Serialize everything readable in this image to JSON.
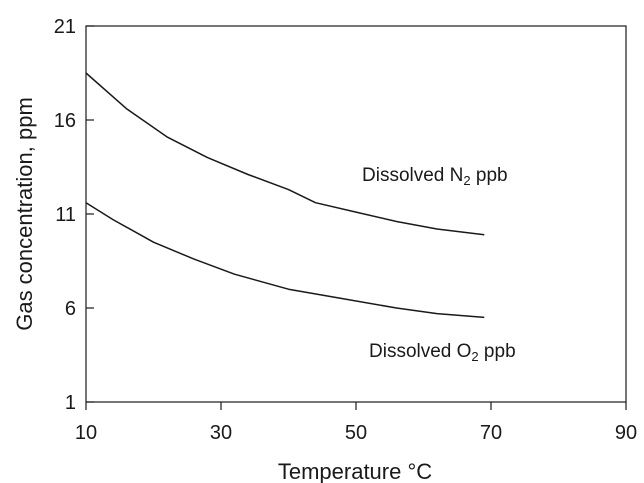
{
  "chart_data": {
    "type": "line",
    "xlabel": "Temperature °C",
    "ylabel": "Gas concentration, ppm",
    "xlim": [
      10,
      90
    ],
    "ylim": [
      1,
      21
    ],
    "x_ticks": [
      "10",
      "30",
      "50",
      "70",
      "90"
    ],
    "y_ticks": [
      "1",
      "6",
      "11",
      "16",
      "21"
    ],
    "grid": false,
    "legend": "none",
    "series": [
      {
        "label_prefix": "Dissolved N",
        "label_sub": "2",
        "label_suffix": " ppb",
        "color": "#1a1a1a",
        "points": [
          [
            10,
            18.5
          ],
          [
            16,
            16.6
          ],
          [
            22,
            15.1
          ],
          [
            28,
            14.0
          ],
          [
            34,
            13.1
          ],
          [
            40,
            12.3
          ],
          [
            44,
            11.6
          ],
          [
            50,
            11.1
          ],
          [
            56,
            10.6
          ],
          [
            62,
            10.2
          ],
          [
            69,
            9.9
          ]
        ]
      },
      {
        "label_prefix": "Dissolved O",
        "label_sub": "2",
        "label_suffix": " ppb",
        "color": "#1a1a1a",
        "points": [
          [
            10,
            11.6
          ],
          [
            14,
            10.7
          ],
          [
            20,
            9.5
          ],
          [
            26,
            8.6
          ],
          [
            32,
            7.8
          ],
          [
            40,
            7.0
          ],
          [
            48,
            6.5
          ],
          [
            56,
            6.0
          ],
          [
            62,
            5.7
          ],
          [
            69,
            5.5
          ]
        ]
      }
    ]
  }
}
